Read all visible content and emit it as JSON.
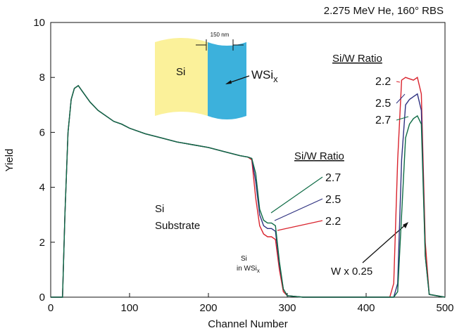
{
  "chart_data": {
    "type": "line",
    "title": "2.275 MeV He, 160° RBS",
    "x_label": "Channel Number",
    "y_label": "Yield",
    "x": [
      0,
      15,
      18,
      22,
      26,
      30,
      35,
      40,
      50,
      60,
      70,
      80,
      90,
      100,
      120,
      140,
      160,
      180,
      200,
      220,
      240,
      250,
      255,
      260,
      265,
      270,
      275,
      280,
      285,
      290,
      295,
      300,
      320,
      360,
      400,
      420,
      430,
      435,
      440,
      445,
      450,
      455,
      460,
      465,
      470,
      475,
      480,
      500
    ],
    "series": [
      {
        "name": "2.2",
        "color": "#d9232d",
        "values": [
          0,
          0,
          3,
          6,
          7.2,
          7.6,
          7.7,
          7.5,
          7.1,
          6.8,
          6.6,
          6.4,
          6.3,
          6.15,
          5.95,
          5.8,
          5.65,
          5.55,
          5.45,
          5.3,
          5.15,
          5.1,
          5.0,
          3.6,
          2.6,
          2.3,
          2.2,
          2.2,
          2.1,
          1.0,
          0.2,
          0.05,
          0,
          0,
          0,
          0,
          0,
          0.5,
          5,
          7.9,
          8.0,
          7.95,
          7.9,
          8.0,
          7.4,
          2,
          0.1,
          0
        ]
      },
      {
        "name": "2.5",
        "color": "#2e3180",
        "values": [
          0,
          0,
          3,
          6,
          7.2,
          7.6,
          7.7,
          7.5,
          7.1,
          6.8,
          6.6,
          6.4,
          6.3,
          6.15,
          5.95,
          5.8,
          5.65,
          5.55,
          5.45,
          5.3,
          5.15,
          5.1,
          5.05,
          4.2,
          3.0,
          2.6,
          2.5,
          2.5,
          2.4,
          1.2,
          0.3,
          0.05,
          0,
          0,
          0,
          0,
          0,
          0,
          0.5,
          5,
          7.0,
          7.2,
          7.3,
          7.4,
          6.8,
          1.5,
          0.1,
          0
        ]
      },
      {
        "name": "2.7",
        "color": "#0e6b45",
        "values": [
          0,
          0,
          3,
          6,
          7.2,
          7.6,
          7.7,
          7.5,
          7.1,
          6.8,
          6.6,
          6.4,
          6.3,
          6.15,
          5.95,
          5.8,
          5.65,
          5.55,
          5.45,
          5.3,
          5.15,
          5.1,
          5.05,
          4.5,
          3.2,
          2.8,
          2.7,
          2.7,
          2.6,
          1.3,
          0.3,
          0.05,
          0,
          0,
          0,
          0,
          0,
          0,
          0.2,
          3,
          5.8,
          6.3,
          6.5,
          6.6,
          6.3,
          1.5,
          0.1,
          0
        ]
      }
    ],
    "xlim": [
      0,
      500
    ],
    "xticks": [
      0,
      100,
      200,
      300,
      400,
      500
    ],
    "ylim": [
      0,
      10
    ],
    "yticks": [
      0,
      2,
      4,
      6,
      8,
      10
    ],
    "annotations": {
      "ratio_headings": [
        "Si/W Ratio",
        "Si/W Ratio"
      ],
      "mid_labels": [
        "2.7",
        "2.5",
        "2.2"
      ],
      "substrate": [
        "Si",
        "Substrate"
      ],
      "si_in": [
        "Si",
        "in WSi",
        "x"
      ],
      "w_scale": "W x 0.25",
      "diagram": {
        "si": "Si",
        "wsi": "WSi",
        "sub": "x",
        "thickness": "150 nm"
      }
    }
  }
}
